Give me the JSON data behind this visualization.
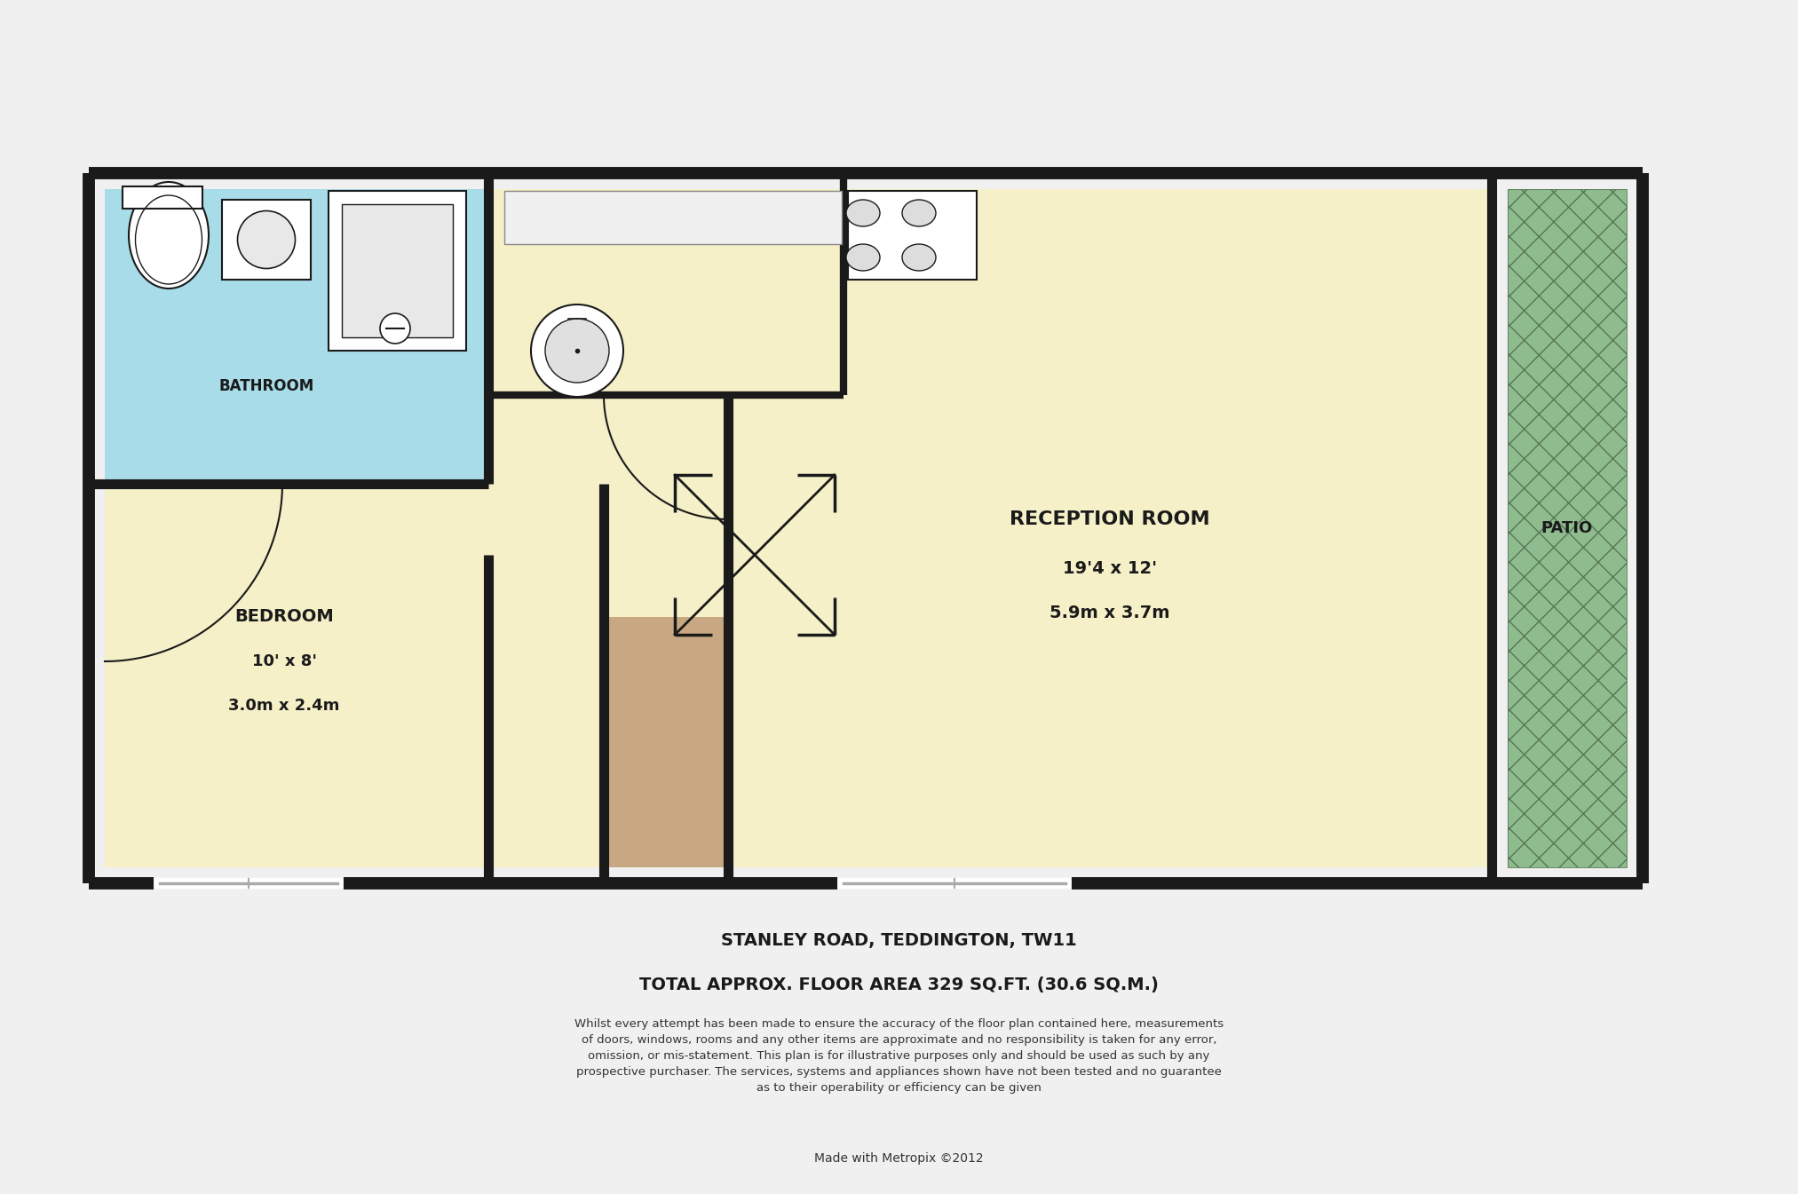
{
  "bg_color": "#f0f0f0",
  "wall_color": "#1a1a1a",
  "wall_thickness": 0.18,
  "floor_yellow": "#f5f0c8",
  "floor_blue": "#a8dce8",
  "floor_green": "#8fbc8f",
  "floor_tan": "#c8a882",
  "title_line1": "STANLEY ROAD, TEDDINGTON, TW11",
  "title_line2": "TOTAL APPROX. FLOOR AREA 329 SQ.FT. (30.6 SQ.M.)",
  "disclaimer": "Whilst every attempt has been made to ensure the accuracy of the floor plan contained here, measurements\nof doors, windows, rooms and any other items are approximate and no responsibility is taken for any error,\nomission, or mis-statement. This plan is for illustrative purposes only and should be used as such by any\nprospective purchaser. The services, systems and appliances shown have not been tested and no guarantee\nas to their operability or efficiency can be given",
  "made_with": "Made with Metropix ©2012",
  "room_label_bedroom": "BEDROOM",
  "room_dim_bedroom1": "10' x 8'",
  "room_dim_bedroom2": "3.0m x 2.4m",
  "room_label_bathroom": "BATHROOM",
  "room_label_reception": "RECEPTION ROOM",
  "room_dim_reception1": "19'4 x 12'",
  "room_dim_reception2": "5.9m x 3.7m",
  "room_label_patio": "PATIO",
  "bedroom_label_fs": 14,
  "bedroom_dim_fs": 13,
  "bathroom_label_fs": 12,
  "reception_label_fs": 16,
  "reception_dim_fs": 14,
  "patio_label_fs": 13
}
